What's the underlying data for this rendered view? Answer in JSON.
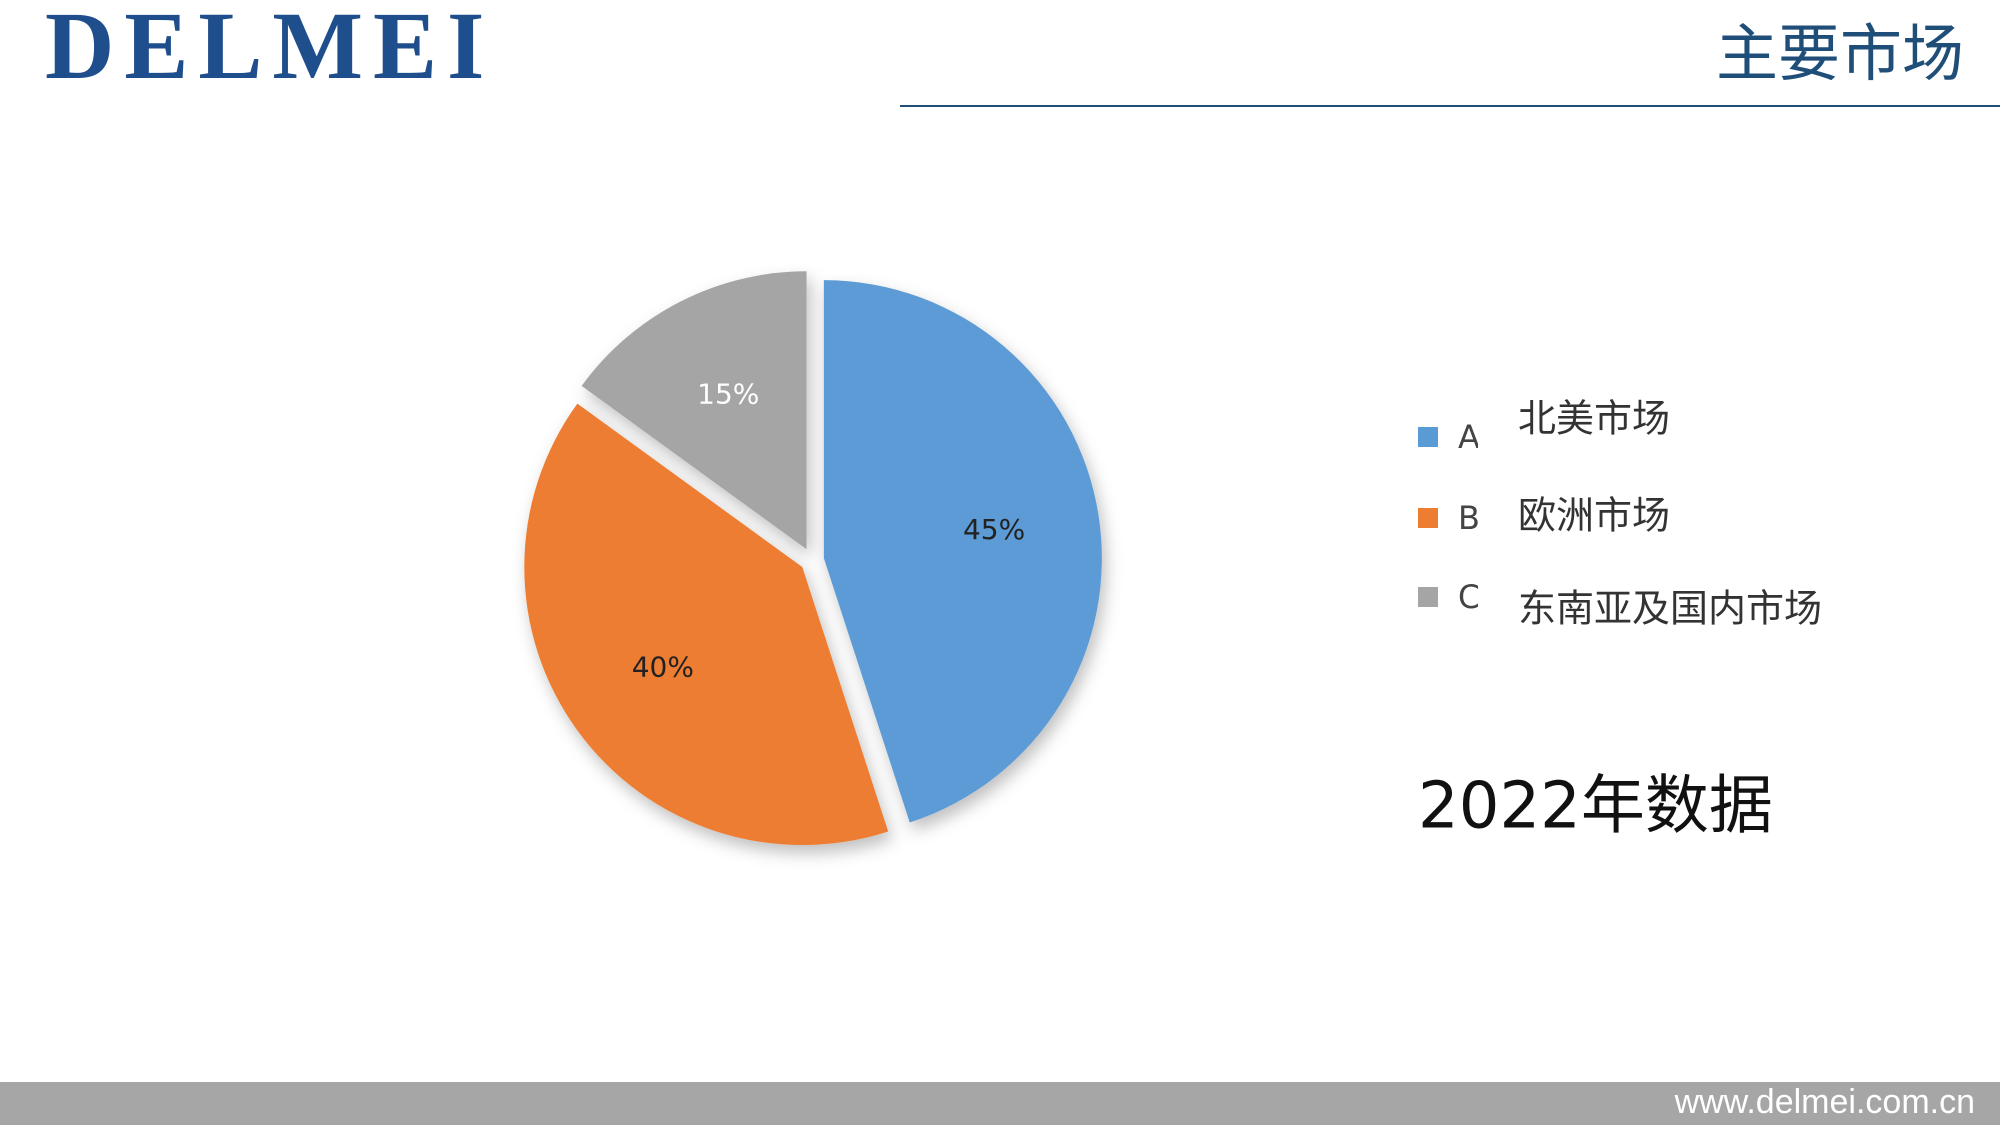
{
  "header": {
    "logo": "DELMEI",
    "title": "主要市场"
  },
  "chart_data": {
    "type": "pie",
    "categories": [
      "A",
      "B",
      "C"
    ],
    "values": [
      45,
      40,
      15
    ],
    "value_labels": [
      "45%",
      "40%",
      "15%"
    ],
    "colors": [
      "#5b9bd5",
      "#ed7d31",
      "#a5a5a5"
    ],
    "legend": "right",
    "annotations": [
      "北美市场",
      "欧洲市场",
      "东南亚及国内市场",
      "2022年数据"
    ]
  },
  "footer": {
    "url": "www.delmei.com.cn"
  }
}
